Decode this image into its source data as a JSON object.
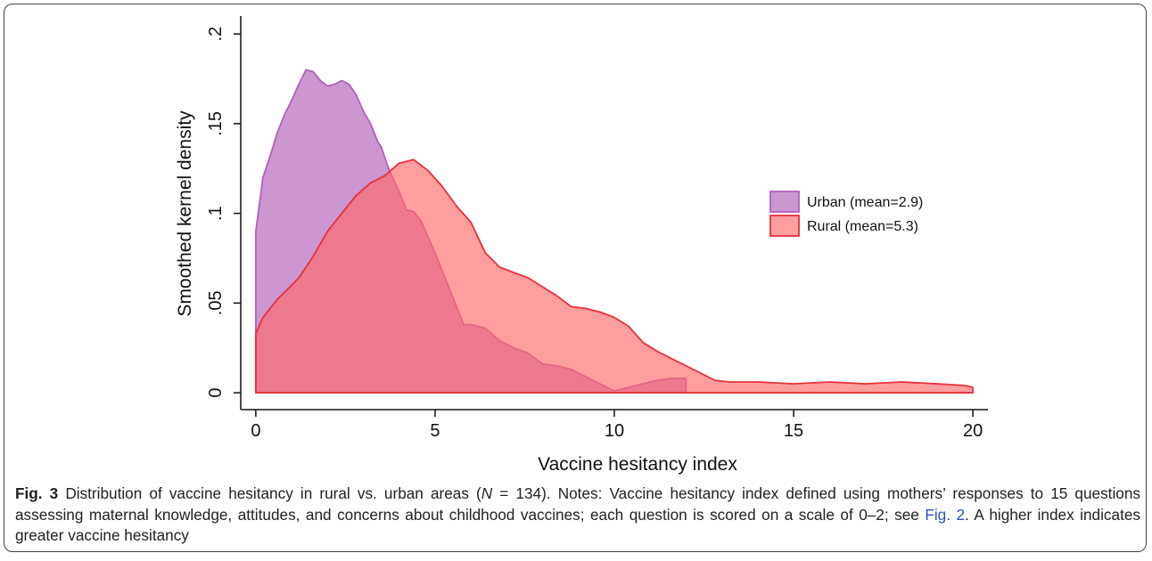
{
  "chart_data": {
    "type": "area",
    "xlabel": "Vaccine hesitancy index",
    "ylabel": "Smoothed kernel density",
    "xlim": [
      -0.42,
      20.42
    ],
    "ylim": [
      -0.0094,
      0.21
    ],
    "xticks": [
      0,
      5,
      10,
      15,
      20
    ],
    "yticks": [
      0,
      {
        "value": 0.05,
        "label": ".05"
      },
      {
        "value": 0.1,
        "label": ".1"
      },
      {
        "value": 0.15,
        "label": ".15"
      },
      {
        "value": 0.2,
        "label": ".2"
      }
    ],
    "legend_position": "right",
    "series": [
      {
        "name": "Urban (mean=2.9)",
        "color": "#b25fbd",
        "fill": "#b060b8",
        "x": [
          0,
          0.2,
          0.4,
          0.6,
          0.8,
          1.0,
          1.2,
          1.3,
          1.4,
          1.6,
          1.8,
          2.0,
          2.2,
          2.4,
          2.6,
          2.8,
          3.0,
          3.2,
          3.4,
          3.5,
          3.7,
          4.0,
          4.2,
          4.4,
          4.6,
          4.8,
          5.0,
          5.2,
          5.4,
          5.6,
          5.8,
          6.0,
          6.4,
          6.8,
          7.2,
          7.6,
          8.0,
          8.4,
          8.8,
          9.2,
          9.6,
          10.0,
          10.4,
          10.8,
          11.2,
          11.6,
          12.0
        ],
        "values": [
          0.09,
          0.12,
          0.132,
          0.145,
          0.155,
          0.163,
          0.172,
          0.176,
          0.18,
          0.179,
          0.174,
          0.171,
          0.172,
          0.174,
          0.172,
          0.166,
          0.157,
          0.15,
          0.14,
          0.137,
          0.125,
          0.112,
          0.102,
          0.101,
          0.096,
          0.087,
          0.078,
          0.068,
          0.058,
          0.048,
          0.038,
          0.038,
          0.036,
          0.029,
          0.025,
          0.022,
          0.016,
          0.015,
          0.013,
          0.009,
          0.005,
          0.001,
          0.003,
          0.005,
          0.007,
          0.008,
          0.008
        ]
      },
      {
        "name": "Rural (mean=5.3)",
        "color": "#e8303a",
        "fill": "#ff6a6a",
        "x": [
          0,
          0.2,
          0.6,
          1.0,
          1.2,
          1.6,
          2.0,
          2.4,
          2.8,
          3.2,
          3.6,
          4.0,
          4.4,
          4.8,
          5.2,
          5.6,
          6.0,
          6.4,
          6.8,
          7.2,
          7.6,
          8.0,
          8.4,
          8.8,
          9.2,
          9.6,
          10.0,
          10.4,
          10.8,
          11.2,
          11.6,
          12.0,
          12.4,
          12.8,
          13.2,
          14,
          15,
          16,
          17,
          18,
          19,
          19.8,
          20
        ],
        "values": [
          0.033,
          0.042,
          0.052,
          0.06,
          0.064,
          0.076,
          0.09,
          0.1,
          0.11,
          0.117,
          0.121,
          0.128,
          0.13,
          0.124,
          0.115,
          0.104,
          0.095,
          0.078,
          0.07,
          0.067,
          0.064,
          0.059,
          0.054,
          0.048,
          0.047,
          0.045,
          0.042,
          0.037,
          0.028,
          0.023,
          0.019,
          0.015,
          0.011,
          0.007,
          0.006,
          0.006,
          0.005,
          0.006,
          0.005,
          0.006,
          0.005,
          0.004,
          0.003
        ]
      }
    ]
  },
  "caption": {
    "label": "Fig. 3",
    "text1": " Distribution of vaccine hesitancy in rural vs. urban areas (",
    "italic": "N",
    "text2": " = 134). Notes: Vaccine hesitancy index defined using mothers’ responses to 15 questions assessing maternal knowledge, attitudes, and concerns about childhood vaccines; each question is scored on a scale of 0–2; see ",
    "link": "Fig. 2",
    "text3": ". A higher index indicates greater vaccine hesitancy"
  }
}
